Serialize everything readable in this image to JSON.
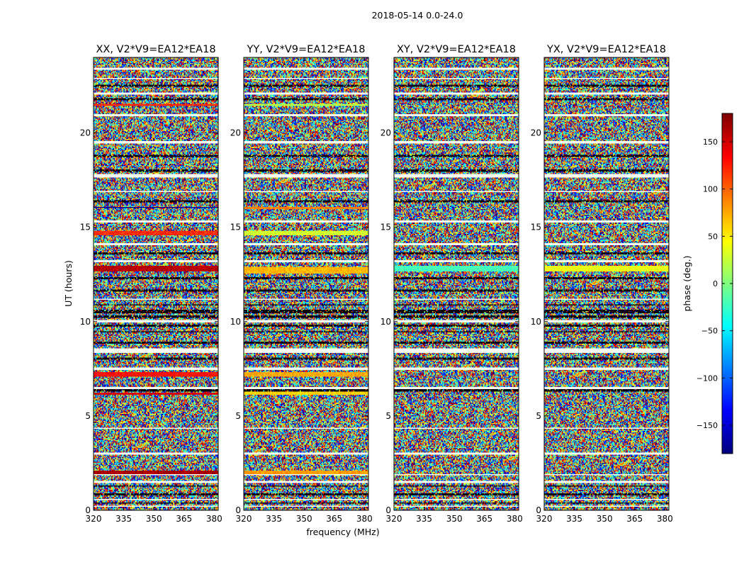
{
  "chart_data": {
    "type": "heatmap",
    "suptitle": "2018-05-14 0.0-24.0",
    "xlabel": "frequency (MHz)",
    "ylabel": "UT (hours)",
    "xlim": [
      320,
      382
    ],
    "ylim": [
      0,
      24
    ],
    "xticks": [
      320,
      335,
      350,
      365,
      380
    ],
    "yticks": [
      0,
      5,
      10,
      15,
      20
    ],
    "colorbar": {
      "label": "phase (deg.)",
      "range": [
        -180,
        180
      ],
      "ticks": [
        -150,
        -100,
        -50,
        0,
        50,
        100,
        150
      ],
      "colormap": "jet",
      "colors": [
        "#00007f",
        "#0000ff",
        "#007fff",
        "#00ffff",
        "#7fff7f",
        "#ffff00",
        "#ff7f00",
        "#ff0000",
        "#7f0000"
      ]
    },
    "flagged_color": "#ffffff",
    "panels": [
      {
        "title": "XX, V2*V9=EA12*EA18",
        "polarization": "XX",
        "stripe_phases": [
          [
            1.95,
            2.1,
            165
          ],
          [
            6.1,
            6.25,
            150
          ],
          [
            7.1,
            7.3,
            130
          ],
          [
            12.65,
            12.95,
            160
          ],
          [
            14.6,
            14.8,
            120
          ],
          [
            16.0,
            16.1,
            -170
          ],
          [
            21.4,
            21.55,
            120
          ]
        ]
      },
      {
        "title": "YY, V2*V9=EA12*EA18",
        "polarization": "YY",
        "stripe_phases": [
          [
            1.95,
            2.1,
            80
          ],
          [
            6.1,
            6.3,
            60
          ],
          [
            7.1,
            7.3,
            75
          ],
          [
            12.55,
            12.9,
            70
          ],
          [
            14.6,
            14.8,
            30
          ],
          [
            15.95,
            16.1,
            90
          ],
          [
            21.4,
            21.55,
            20
          ]
        ]
      },
      {
        "title": "XY, V2*V9=EA12*EA18",
        "polarization": "XY",
        "stripe_phases": [
          [
            12.65,
            12.95,
            -20
          ]
        ]
      },
      {
        "title": "YX, V2*V9=EA12*EA18",
        "polarization": "YX",
        "stripe_phases": [
          [
            12.65,
            12.95,
            40
          ]
        ]
      }
    ],
    "flagged_bands": [
      [
        0.15,
        0.25
      ],
      [
        0.55,
        0.6
      ],
      [
        1.05,
        1.1
      ],
      [
        1.45,
        1.55
      ],
      [
        1.85,
        1.9
      ],
      [
        2.95,
        3.05
      ],
      [
        4.35,
        4.4
      ],
      [
        6.45,
        6.55
      ],
      [
        7.45,
        7.55
      ],
      [
        8.35,
        8.55
      ],
      [
        9.95,
        10.05
      ],
      [
        11.15,
        11.25
      ],
      [
        13.15,
        13.25
      ],
      [
        14.05,
        14.15
      ],
      [
        15.25,
        15.35
      ],
      [
        16.85,
        16.95
      ],
      [
        17.65,
        17.85
      ],
      [
        19.45,
        19.55
      ],
      [
        20.9,
        21.0
      ],
      [
        22.05,
        22.15
      ],
      [
        22.85,
        22.95
      ],
      [
        23.35,
        23.45
      ]
    ],
    "black_bands": [
      [
        0.35,
        0.45
      ],
      [
        0.8,
        0.9
      ],
      [
        1.25,
        1.35
      ],
      [
        6.3,
        6.4
      ],
      [
        8.0,
        8.1
      ],
      [
        8.85,
        8.95
      ],
      [
        9.4,
        9.5
      ],
      [
        9.75,
        9.85
      ],
      [
        10.2,
        10.3
      ],
      [
        10.45,
        10.6
      ],
      [
        10.85,
        10.95
      ],
      [
        11.6,
        11.7
      ],
      [
        12.25,
        12.35
      ],
      [
        13.55,
        13.65
      ],
      [
        16.35,
        16.45
      ],
      [
        17.95,
        18.05
      ],
      [
        18.75,
        18.85
      ],
      [
        21.75,
        21.85
      ],
      [
        22.45,
        22.55
      ]
    ]
  }
}
